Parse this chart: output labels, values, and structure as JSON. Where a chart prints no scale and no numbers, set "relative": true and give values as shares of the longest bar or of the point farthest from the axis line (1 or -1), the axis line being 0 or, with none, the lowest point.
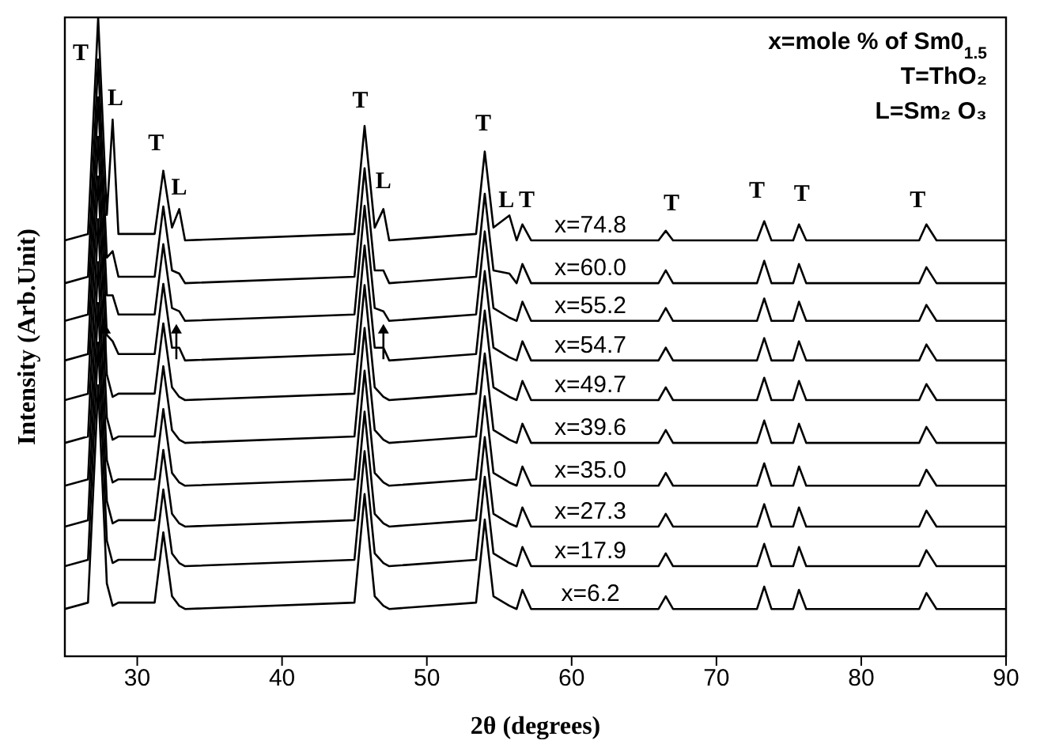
{
  "chart_data": {
    "type": "line",
    "relative": true,
    "xlabel": "2θ (degrees)",
    "ylabel": "Intensity (Arb.Unit)",
    "xlim": [
      25,
      90
    ],
    "xticks": [
      30,
      40,
      50,
      60,
      70,
      80,
      90
    ],
    "grid": false,
    "legend": false,
    "marker": "none",
    "line_style": "solid",
    "x": [
      25,
      26.6,
      27.3,
      27.9,
      28.3,
      28.7,
      31.2,
      31.8,
      32.4,
      32.9,
      33.3,
      45.0,
      45.7,
      46.4,
      47.0,
      47.4,
      53.4,
      54.0,
      54.6,
      55.7,
      56.2,
      56.6,
      57.2,
      66.0,
      66.5,
      67.0,
      72.8,
      73.3,
      73.8,
      75.3,
      75.7,
      76.2,
      84.0,
      84.5,
      85.2,
      90
    ],
    "series": [
      {
        "name": "x=74.8",
        "color": "#000000",
        "values": [
          0.651,
          0.661,
          1.0,
          0.691,
          0.84,
          0.661,
          0.661,
          0.76,
          0.671,
          0.7,
          0.651,
          0.661,
          0.83,
          0.671,
          0.7,
          0.651,
          0.661,
          0.79,
          0.671,
          0.69,
          0.651,
          0.676,
          0.651,
          0.651,
          0.666,
          0.651,
          0.651,
          0.681,
          0.651,
          0.651,
          0.676,
          0.651,
          0.651,
          0.676,
          0.651,
          0.651
        ]
      },
      {
        "name": "x=60.0",
        "color": "#000000",
        "values": [
          0.584,
          0.594,
          0.934,
          0.624,
          0.634,
          0.594,
          0.594,
          0.704,
          0.604,
          0.599,
          0.584,
          0.594,
          0.764,
          0.604,
          0.604,
          0.584,
          0.594,
          0.724,
          0.604,
          0.599,
          0.584,
          0.614,
          0.584,
          0.584,
          0.604,
          0.584,
          0.584,
          0.619,
          0.584,
          0.584,
          0.614,
          0.584,
          0.584,
          0.609,
          0.584,
          0.584
        ]
      },
      {
        "name": "x=55.2",
        "color": "#000000",
        "values": [
          0.525,
          0.535,
          0.875,
          0.565,
          0.565,
          0.535,
          0.535,
          0.645,
          0.545,
          0.54,
          0.525,
          0.535,
          0.705,
          0.545,
          0.54,
          0.525,
          0.535,
          0.665,
          0.545,
          0.53,
          0.525,
          0.555,
          0.525,
          0.525,
          0.545,
          0.525,
          0.525,
          0.56,
          0.525,
          0.525,
          0.555,
          0.525,
          0.525,
          0.55,
          0.525,
          0.525
        ]
      },
      {
        "name": "x=54.7",
        "color": "#000000",
        "values": [
          0.463,
          0.473,
          0.813,
          0.503,
          0.493,
          0.473,
          0.473,
          0.583,
          0.483,
          0.483,
          0.463,
          0.473,
          0.643,
          0.483,
          0.483,
          0.463,
          0.473,
          0.603,
          0.483,
          0.468,
          0.463,
          0.493,
          0.463,
          0.463,
          0.483,
          0.463,
          0.463,
          0.498,
          0.463,
          0.463,
          0.493,
          0.463,
          0.463,
          0.488,
          0.463,
          0.463
        ]
      },
      {
        "name": "x=49.7",
        "color": "#000000",
        "values": [
          0.401,
          0.411,
          0.751,
          0.441,
          0.406,
          0.411,
          0.411,
          0.521,
          0.421,
          0.406,
          0.401,
          0.411,
          0.581,
          0.421,
          0.406,
          0.401,
          0.411,
          0.541,
          0.421,
          0.406,
          0.401,
          0.431,
          0.401,
          0.401,
          0.421,
          0.401,
          0.401,
          0.436,
          0.401,
          0.401,
          0.431,
          0.401,
          0.401,
          0.426,
          0.401,
          0.401
        ]
      },
      {
        "name": "x=39.6",
        "color": "#000000",
        "values": [
          0.334,
          0.344,
          0.684,
          0.374,
          0.339,
          0.344,
          0.344,
          0.454,
          0.354,
          0.339,
          0.334,
          0.344,
          0.514,
          0.354,
          0.339,
          0.334,
          0.344,
          0.474,
          0.354,
          0.339,
          0.334,
          0.364,
          0.334,
          0.334,
          0.354,
          0.334,
          0.334,
          0.369,
          0.334,
          0.334,
          0.364,
          0.334,
          0.334,
          0.359,
          0.334,
          0.334
        ]
      },
      {
        "name": "x=35.0",
        "color": "#000000",
        "values": [
          0.267,
          0.277,
          0.617,
          0.307,
          0.272,
          0.277,
          0.277,
          0.387,
          0.287,
          0.272,
          0.267,
          0.277,
          0.447,
          0.287,
          0.272,
          0.267,
          0.277,
          0.407,
          0.287,
          0.272,
          0.267,
          0.297,
          0.267,
          0.267,
          0.287,
          0.267,
          0.267,
          0.302,
          0.267,
          0.267,
          0.297,
          0.267,
          0.267,
          0.292,
          0.267,
          0.267
        ]
      },
      {
        "name": "x=27.3",
        "color": "#000000",
        "values": [
          0.203,
          0.213,
          0.553,
          0.243,
          0.208,
          0.213,
          0.213,
          0.323,
          0.223,
          0.208,
          0.203,
          0.213,
          0.383,
          0.223,
          0.208,
          0.203,
          0.213,
          0.343,
          0.223,
          0.208,
          0.203,
          0.233,
          0.203,
          0.203,
          0.223,
          0.203,
          0.203,
          0.238,
          0.203,
          0.203,
          0.233,
          0.203,
          0.203,
          0.228,
          0.203,
          0.203
        ]
      },
      {
        "name": "x=17.9",
        "color": "#000000",
        "values": [
          0.141,
          0.151,
          0.491,
          0.181,
          0.146,
          0.151,
          0.151,
          0.261,
          0.161,
          0.146,
          0.141,
          0.151,
          0.321,
          0.161,
          0.146,
          0.141,
          0.151,
          0.281,
          0.161,
          0.146,
          0.141,
          0.171,
          0.141,
          0.141,
          0.161,
          0.141,
          0.141,
          0.176,
          0.141,
          0.141,
          0.171,
          0.141,
          0.141,
          0.166,
          0.141,
          0.141
        ]
      },
      {
        "name": "x=6.2",
        "color": "#000000",
        "values": [
          0.074,
          0.084,
          0.424,
          0.114,
          0.079,
          0.084,
          0.084,
          0.194,
          0.094,
          0.079,
          0.074,
          0.084,
          0.254,
          0.094,
          0.079,
          0.074,
          0.084,
          0.214,
          0.094,
          0.079,
          0.074,
          0.104,
          0.074,
          0.074,
          0.094,
          0.074,
          0.074,
          0.109,
          0.074,
          0.074,
          0.104,
          0.074,
          0.074,
          0.099,
          0.074,
          0.074
        ]
      }
    ],
    "annotations": [
      "x=mole % of Sm0$_{1.5}$",
      "T=ThO₂",
      "L=Sm₂ O₃",
      "T",
      "L",
      "T",
      "L",
      "T",
      "L",
      "T",
      "L",
      "T",
      "T",
      "T",
      "T",
      "T"
    ]
  }
}
